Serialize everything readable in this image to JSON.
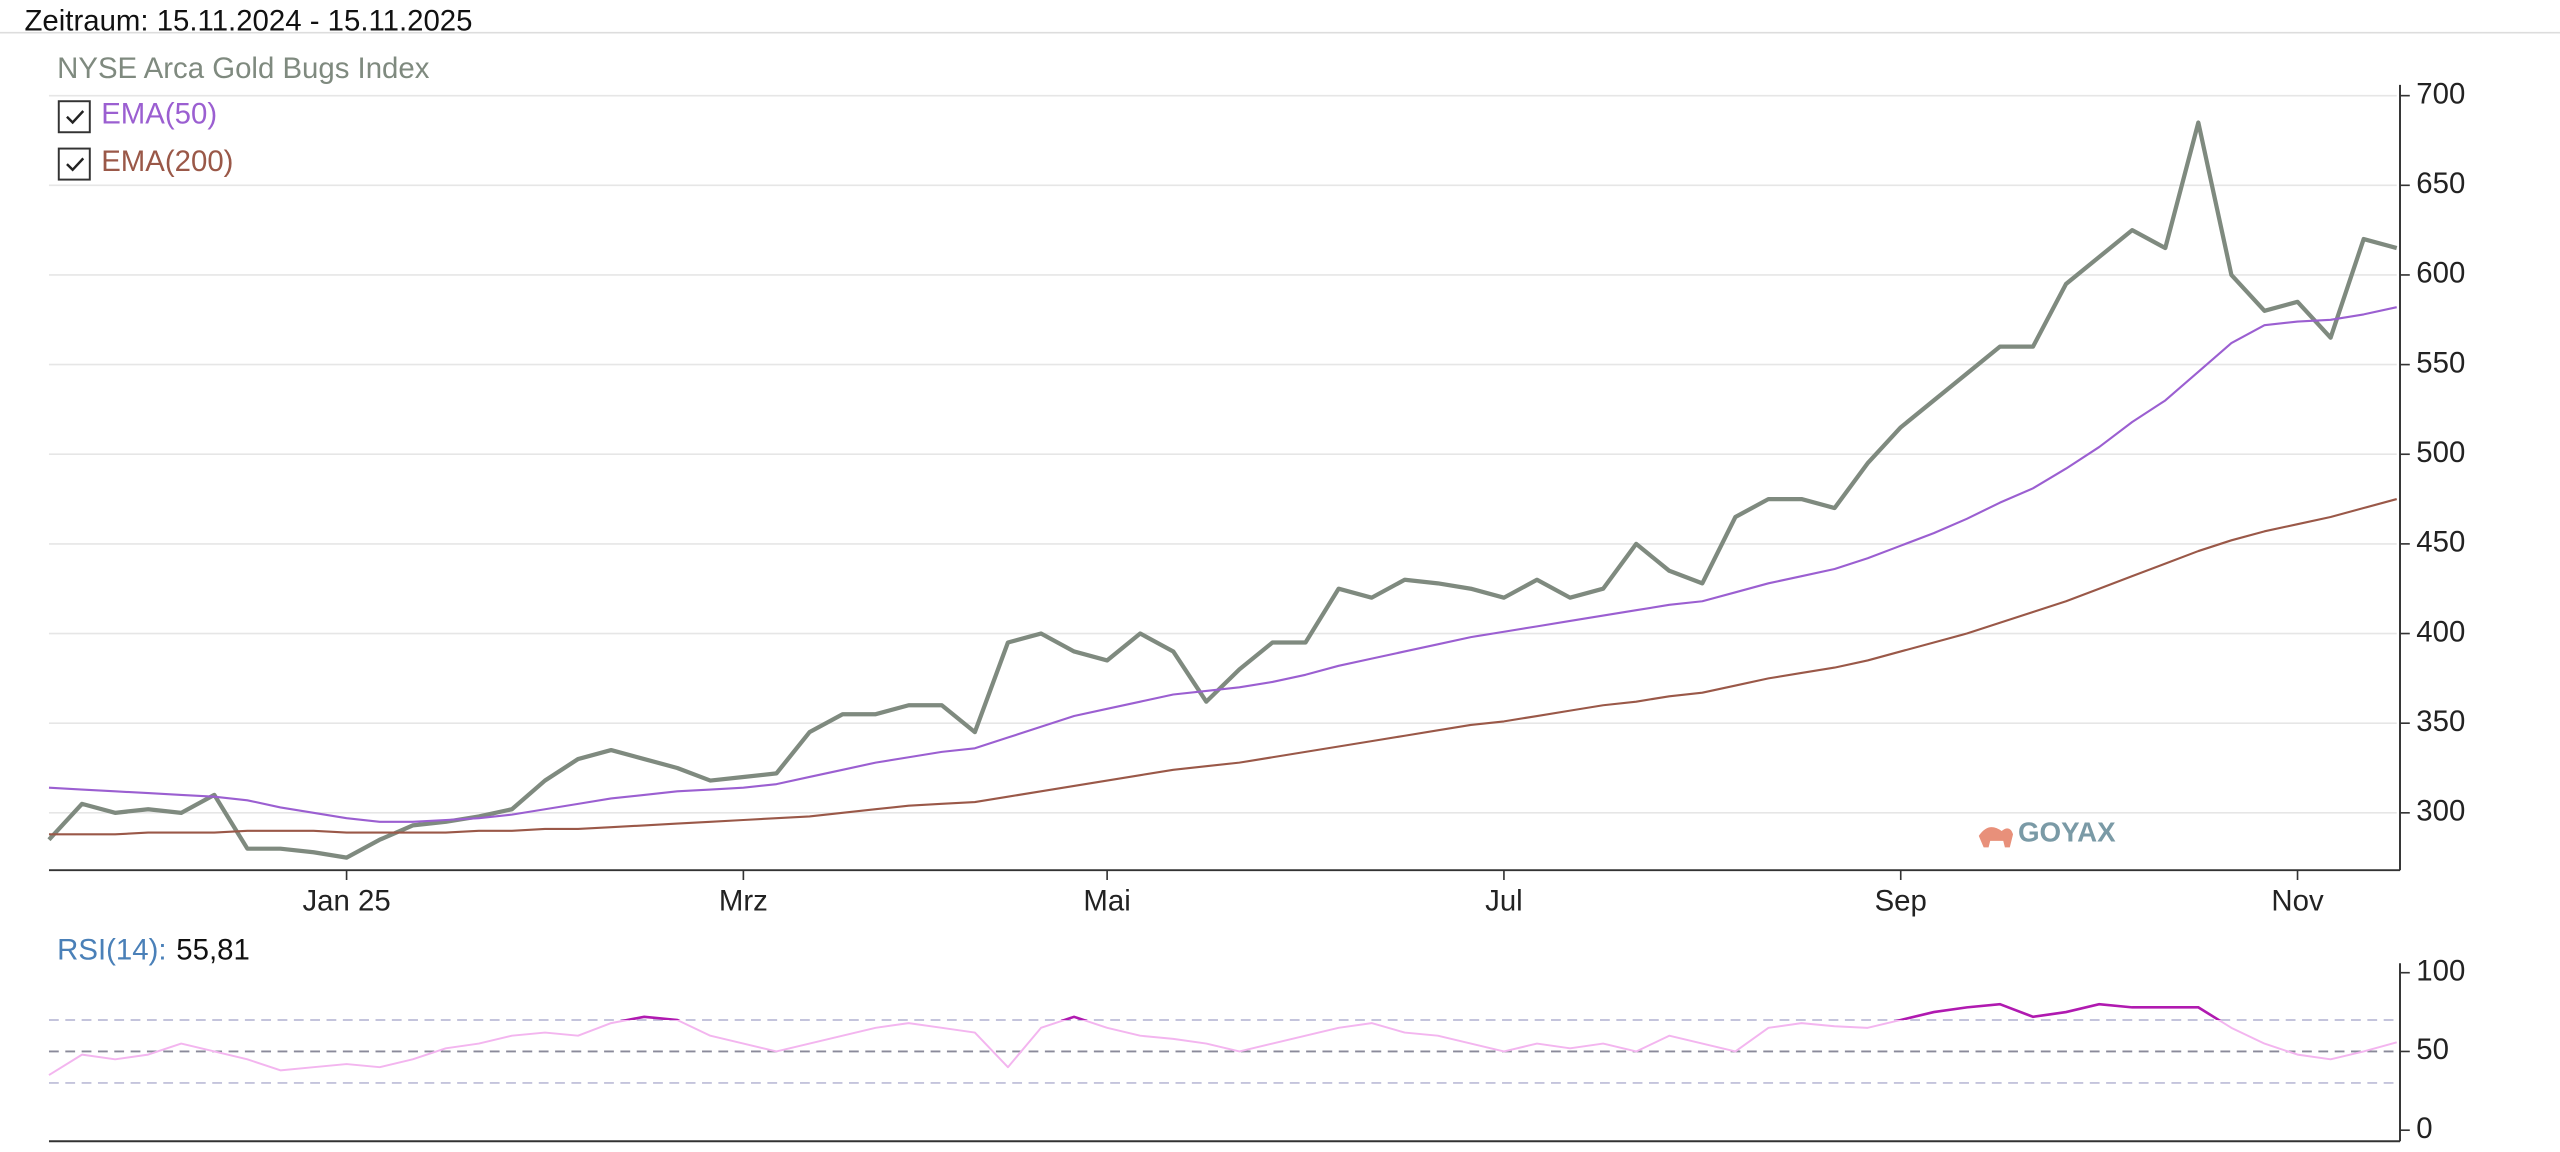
{
  "chart_data": [
    {
      "type": "line",
      "subtitle": "Zeitraum: 15.11.2024 - 15.11.2025",
      "watermark": "GOYAX",
      "categories": [
        null,
        null,
        null,
        null,
        null,
        null,
        null,
        null,
        null,
        "Jan 25",
        null,
        null,
        null,
        null,
        null,
        null,
        null,
        null,
        null,
        null,
        null,
        "Mrz",
        null,
        null,
        null,
        null,
        null,
        null,
        null,
        null,
        null,
        null,
        "Mai",
        null,
        null,
        null,
        null,
        null,
        null,
        null,
        null,
        null,
        null,
        null,
        "Jul",
        null,
        null,
        null,
        null,
        null,
        null,
        null,
        null,
        null,
        null,
        null,
        "Sep",
        null,
        null,
        null,
        null,
        null,
        null,
        null,
        null,
        null,
        null,
        null,
        "Nov",
        null,
        null,
        null
      ],
      "series": [
        {
          "name": "NYSE Arca Gold Bugs Index",
          "color": "#7f8a7f",
          "values": [
            285,
            305,
            300,
            302,
            300,
            310,
            280,
            280,
            278,
            275,
            285,
            293,
            295,
            298,
            302,
            318,
            330,
            335,
            330,
            325,
            318,
            320,
            322,
            345,
            355,
            355,
            360,
            360,
            345,
            395,
            400,
            390,
            385,
            400,
            390,
            362,
            380,
            395,
            395,
            425,
            420,
            430,
            428,
            425,
            420,
            430,
            420,
            425,
            450,
            435,
            428,
            465,
            475,
            475,
            470,
            495,
            515,
            530,
            545,
            560,
            560,
            595,
            610,
            625,
            615,
            685,
            600,
            580,
            585,
            565,
            620,
            615
          ]
        },
        {
          "name": "EMA(50)",
          "color": "#9b5fd1",
          "checked": true,
          "values": [
            314,
            313,
            312,
            311,
            310,
            309,
            307,
            303,
            300,
            297,
            295,
            295,
            296,
            297,
            299,
            302,
            305,
            308,
            310,
            312,
            313,
            314,
            316,
            320,
            324,
            328,
            331,
            334,
            336,
            342,
            348,
            354,
            358,
            362,
            366,
            368,
            370,
            373,
            377,
            382,
            386,
            390,
            394,
            398,
            401,
            404,
            407,
            410,
            413,
            416,
            418,
            423,
            428,
            432,
            436,
            442,
            449,
            456,
            464,
            473,
            481,
            492,
            504,
            518,
            530,
            546,
            562,
            572,
            574,
            575,
            578,
            582
          ]
        },
        {
          "name": "EMA(200)",
          "color": "#9a5848",
          "checked": true,
          "values": [
            288,
            288,
            288,
            289,
            289,
            289,
            290,
            290,
            290,
            289,
            289,
            289,
            289,
            290,
            290,
            291,
            291,
            292,
            293,
            294,
            295,
            296,
            297,
            298,
            300,
            302,
            304,
            305,
            306,
            309,
            312,
            315,
            318,
            321,
            324,
            326,
            328,
            331,
            334,
            337,
            340,
            343,
            346,
            349,
            351,
            354,
            357,
            360,
            362,
            365,
            367,
            371,
            375,
            378,
            381,
            385,
            390,
            395,
            400,
            406,
            412,
            418,
            425,
            432,
            439,
            446,
            452,
            457,
            461,
            465,
            470,
            475
          ]
        }
      ],
      "ylim": [
        268,
        706
      ],
      "yticks": [
        300,
        350,
        400,
        450,
        500,
        550,
        600,
        650,
        700
      ],
      "grid": true
    },
    {
      "type": "line",
      "series": [
        {
          "name": "RSI(14):",
          "color": "#f3b5ef",
          "overbought_color": "#b01ab0",
          "current_value_label": "55,81",
          "values": [
            35,
            48,
            45,
            48,
            55,
            50,
            45,
            38,
            40,
            42,
            40,
            45,
            52,
            55,
            60,
            62,
            60,
            68,
            72,
            70,
            60,
            55,
            50,
            55,
            60,
            65,
            68,
            65,
            62,
            40,
            65,
            72,
            65,
            60,
            58,
            55,
            50,
            55,
            60,
            65,
            68,
            62,
            60,
            55,
            50,
            55,
            52,
            55,
            50,
            60,
            55,
            50,
            65,
            68,
            66,
            65,
            70,
            75,
            78,
            80,
            72,
            75,
            80,
            78,
            78,
            78,
            65,
            55,
            48,
            45,
            50,
            55.81
          ]
        }
      ],
      "ylim": [
        -7,
        106
      ],
      "yticks": [
        0,
        50,
        100
      ],
      "hlines": [
        30,
        50,
        70
      ]
    }
  ]
}
